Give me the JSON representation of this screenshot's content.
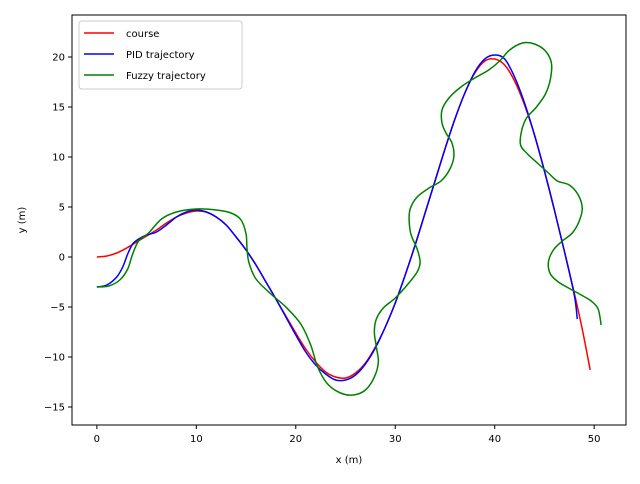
{
  "chart_data": {
    "type": "line",
    "title": "",
    "xlabel": "x (m)",
    "ylabel": "y (m)",
    "xlim": [
      -2.5,
      53.2
    ],
    "ylim": [
      -16.8,
      24.2
    ],
    "xticks": [
      0,
      10,
      20,
      30,
      40,
      50
    ],
    "yticks": [
      -15,
      -10,
      -5,
      0,
      5,
      10,
      15,
      20
    ],
    "grid": false,
    "legend_position": "top-left",
    "series": [
      {
        "name": "course",
        "color": "#ff0000",
        "points": [
          [
            0,
            0
          ],
          [
            1,
            0.1
          ],
          [
            2,
            0.4
          ],
          [
            3,
            0.9
          ],
          [
            4,
            1.5
          ],
          [
            5,
            2.1
          ],
          [
            6,
            2.7
          ],
          [
            7,
            3.4
          ],
          [
            8,
            4.0
          ],
          [
            9,
            4.4
          ],
          [
            10,
            4.6
          ],
          [
            11,
            4.5
          ],
          [
            12,
            4.0
          ],
          [
            13,
            3.2
          ],
          [
            14,
            2.0
          ],
          [
            15,
            0.7
          ],
          [
            16,
            -0.8
          ],
          [
            17,
            -2.5
          ],
          [
            18,
            -4.2
          ],
          [
            19,
            -5.9
          ],
          [
            20,
            -7.6
          ],
          [
            21,
            -9.2
          ],
          [
            22,
            -10.5
          ],
          [
            23,
            -11.5
          ],
          [
            24,
            -12.0
          ],
          [
            25,
            -12.1
          ],
          [
            26,
            -11.6
          ],
          [
            27,
            -10.6
          ],
          [
            28,
            -9.0
          ],
          [
            29,
            -7.0
          ],
          [
            30,
            -4.6
          ],
          [
            31,
            -1.8
          ],
          [
            32,
            1.2
          ],
          [
            33,
            4.4
          ],
          [
            34,
            7.6
          ],
          [
            35,
            10.8
          ],
          [
            36,
            13.8
          ],
          [
            37,
            16.4
          ],
          [
            38,
            18.4
          ],
          [
            39,
            19.6
          ],
          [
            40,
            19.8
          ],
          [
            41,
            19.2
          ],
          [
            42,
            17.6
          ],
          [
            43,
            15.2
          ],
          [
            44,
            12.2
          ],
          [
            45,
            8.6
          ],
          [
            46,
            4.7
          ],
          [
            47,
            0.6
          ],
          [
            48,
            -3.6
          ],
          [
            48.8,
            -7.2
          ],
          [
            49.6,
            -11.3
          ]
        ]
      },
      {
        "name": "PID trajectory",
        "color": "#0000ff",
        "points": [
          [
            0,
            -3
          ],
          [
            1,
            -2.8
          ],
          [
            2,
            -2
          ],
          [
            2.6,
            -1
          ],
          [
            3.1,
            0.3
          ],
          [
            3.6,
            1.3
          ],
          [
            4.2,
            1.8
          ],
          [
            5,
            2.2
          ],
          [
            6,
            2.5
          ],
          [
            7,
            3.2
          ],
          [
            8,
            4.0
          ],
          [
            9,
            4.5
          ],
          [
            10,
            4.7
          ],
          [
            11,
            4.5
          ],
          [
            12,
            4.0
          ],
          [
            13,
            3.2
          ],
          [
            14,
            2.0
          ],
          [
            15,
            0.7
          ],
          [
            16,
            -0.8
          ],
          [
            17,
            -2.5
          ],
          [
            18,
            -4.2
          ],
          [
            19,
            -6.0
          ],
          [
            20,
            -7.8
          ],
          [
            21,
            -9.5
          ],
          [
            22,
            -10.8
          ],
          [
            23,
            -11.7
          ],
          [
            24,
            -12.3
          ],
          [
            25,
            -12.3
          ],
          [
            26,
            -11.8
          ],
          [
            27,
            -10.7
          ],
          [
            28,
            -9.1
          ],
          [
            29,
            -7.0
          ],
          [
            30,
            -4.6
          ],
          [
            31,
            -1.8
          ],
          [
            32,
            1.2
          ],
          [
            33,
            4.4
          ],
          [
            34,
            7.6
          ],
          [
            35,
            10.8
          ],
          [
            36,
            13.8
          ],
          [
            37,
            16.4
          ],
          [
            38,
            18.5
          ],
          [
            39,
            19.8
          ],
          [
            40,
            20.2
          ],
          [
            41,
            19.8
          ],
          [
            42,
            18.0
          ],
          [
            43,
            15.4
          ],
          [
            44,
            12.2
          ],
          [
            45,
            8.6
          ],
          [
            46,
            4.7
          ],
          [
            47,
            0.6
          ],
          [
            48,
            -3.8
          ],
          [
            48.3,
            -6.2
          ]
        ]
      },
      {
        "name": "Fuzzy trajectory",
        "color": "#008000",
        "points": [
          [
            0,
            -3
          ],
          [
            1.2,
            -2.9
          ],
          [
            2.3,
            -2.3
          ],
          [
            3.1,
            -1.2
          ],
          [
            3.6,
            0.3
          ],
          [
            4.2,
            1.6
          ],
          [
            5.2,
            2.4
          ],
          [
            6.5,
            3.8
          ],
          [
            8,
            4.5
          ],
          [
            10,
            4.8
          ],
          [
            12,
            4.7
          ],
          [
            13.5,
            4.4
          ],
          [
            14.5,
            3.7
          ],
          [
            15,
            2.3
          ],
          [
            15.1,
            0.8
          ],
          [
            15.3,
            -0.6
          ],
          [
            16,
            -2.2
          ],
          [
            17.5,
            -3.7
          ],
          [
            19,
            -5
          ],
          [
            20.5,
            -6.7
          ],
          [
            21.5,
            -8.8
          ],
          [
            22.2,
            -11
          ],
          [
            23.2,
            -12.7
          ],
          [
            24.5,
            -13.6
          ],
          [
            25.8,
            -13.8
          ],
          [
            27,
            -13.3
          ],
          [
            27.9,
            -12
          ],
          [
            28.3,
            -10.5
          ],
          [
            28.1,
            -9
          ],
          [
            27.9,
            -7.5
          ],
          [
            28.1,
            -6.2
          ],
          [
            28.8,
            -5.1
          ],
          [
            30,
            -4.1
          ],
          [
            31.2,
            -2.8
          ],
          [
            32.2,
            -1.5
          ],
          [
            32.5,
            -0.5
          ],
          [
            32.2,
            0.8
          ],
          [
            31.6,
            2.2
          ],
          [
            31.4,
            3.6
          ],
          [
            31.5,
            4.8
          ],
          [
            32.2,
            6
          ],
          [
            33.4,
            6.9
          ],
          [
            34.6,
            7.6
          ],
          [
            35.5,
            8.8
          ],
          [
            35.9,
            10.1
          ],
          [
            35.7,
            11.4
          ],
          [
            35.1,
            12.4
          ],
          [
            34.7,
            13.4
          ],
          [
            34.7,
            14.7
          ],
          [
            35.4,
            15.9
          ],
          [
            36.6,
            17
          ],
          [
            38,
            17.9
          ],
          [
            39.4,
            18.7
          ],
          [
            40.5,
            19.6
          ],
          [
            41.5,
            20.7
          ],
          [
            42.8,
            21.4
          ],
          [
            44,
            21.3
          ],
          [
            45.1,
            20.6
          ],
          [
            45.7,
            19.4
          ],
          [
            45.6,
            17.8
          ],
          [
            45.1,
            16.3
          ],
          [
            44.2,
            15
          ],
          [
            43.2,
            13.9
          ],
          [
            42.7,
            12.6
          ],
          [
            42.6,
            11.2
          ],
          [
            43.3,
            10.3
          ],
          [
            44.4,
            9.3
          ],
          [
            45.4,
            8.4
          ],
          [
            46.3,
            7.6
          ],
          [
            47.5,
            7.2
          ],
          [
            48.4,
            6.2
          ],
          [
            48.8,
            4.9
          ],
          [
            48.5,
            3.6
          ],
          [
            47.8,
            2.4
          ],
          [
            46.8,
            1.6
          ],
          [
            45.9,
            0.7
          ],
          [
            45.4,
            -0.5
          ],
          [
            45.6,
            -1.7
          ],
          [
            46.4,
            -2.5
          ],
          [
            47.6,
            -3.2
          ],
          [
            48.7,
            -3.8
          ],
          [
            49.7,
            -4.4
          ],
          [
            50.4,
            -5.2
          ],
          [
            50.7,
            -6.8
          ]
        ]
      }
    ]
  }
}
